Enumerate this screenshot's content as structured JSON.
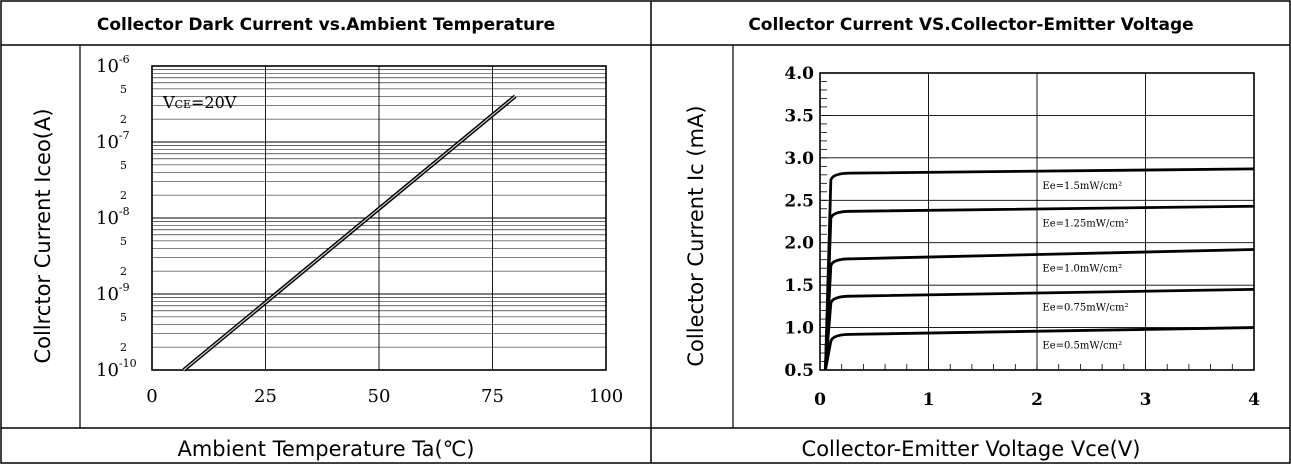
{
  "table": {
    "left_header": "Collector Dark Current vs.Ambient Temperature",
    "right_header": "Collector Current VS.Collector-Emitter Voltage",
    "left_footer": "Ambient Temperature Ta(℃)",
    "right_footer": "Collector-Emitter Voltage Vce(V)"
  },
  "chart_data": [
    {
      "type": "line",
      "title": "Collector Dark Current vs.Ambient Temperature",
      "xlabel": "Ambient Temperature Ta(℃)",
      "ylabel": "Collrctor  Current Iceo(A)",
      "x_ticks": [
        "0",
        "25",
        "50",
        "75",
        "100"
      ],
      "xlim": [
        0,
        100
      ],
      "ylim": [
        1e-10,
        1e-06
      ],
      "yscale": "log",
      "y_tick_labels": [
        {
          "value": 1e-06,
          "base": "10",
          "exp": "-6"
        },
        {
          "value": 1e-07,
          "base": "10",
          "exp": "-7"
        },
        {
          "value": 1e-08,
          "base": "10",
          "exp": "-8"
        },
        {
          "value": 1e-09,
          "base": "10",
          "exp": "-9"
        },
        {
          "value": 1e-10,
          "base": "10",
          "exp": "-10"
        }
      ],
      "y_minor_labels": [
        "5",
        "2",
        "5",
        "2",
        "5",
        "2",
        "5",
        "2"
      ],
      "annotation": {
        "main": "V",
        "sub": "CE",
        "rest": "=20V"
      },
      "grid": true,
      "series": [
        {
          "x": [
            7,
            80
          ],
          "y": [
            1e-10,
            4e-07
          ]
        }
      ]
    },
    {
      "type": "line",
      "title": "Collector Current VS.Collector-Emitter Voltage",
      "xlabel": "Collector-Emitter Voltage Vce(V)",
      "ylabel": "Collector Current Ic (mA)",
      "x_ticks": [
        "0",
        "1",
        "2",
        "3",
        "4"
      ],
      "y_ticks": [
        "0.5",
        "1.0",
        "1.5",
        "2.0",
        "2.5",
        "3.0",
        "3.5",
        "4.0"
      ],
      "xlim": [
        0,
        4
      ],
      "ylim": [
        0.5,
        4.0
      ],
      "grid": true,
      "series": [
        {
          "name": "Ee=1.5mW/cm²",
          "sat": 2.82,
          "end": 2.87
        },
        {
          "name": "Ee=1.25mW/cm²",
          "sat": 2.37,
          "end": 2.43
        },
        {
          "name": "Ee=1.0mW/cm²",
          "sat": 1.81,
          "end": 1.92
        },
        {
          "name": "Ee=0.75mW/cm²",
          "sat": 1.37,
          "end": 1.45
        },
        {
          "name": "Ee=0.5mW/cm²",
          "sat": 0.92,
          "end": 1.0
        }
      ]
    }
  ]
}
